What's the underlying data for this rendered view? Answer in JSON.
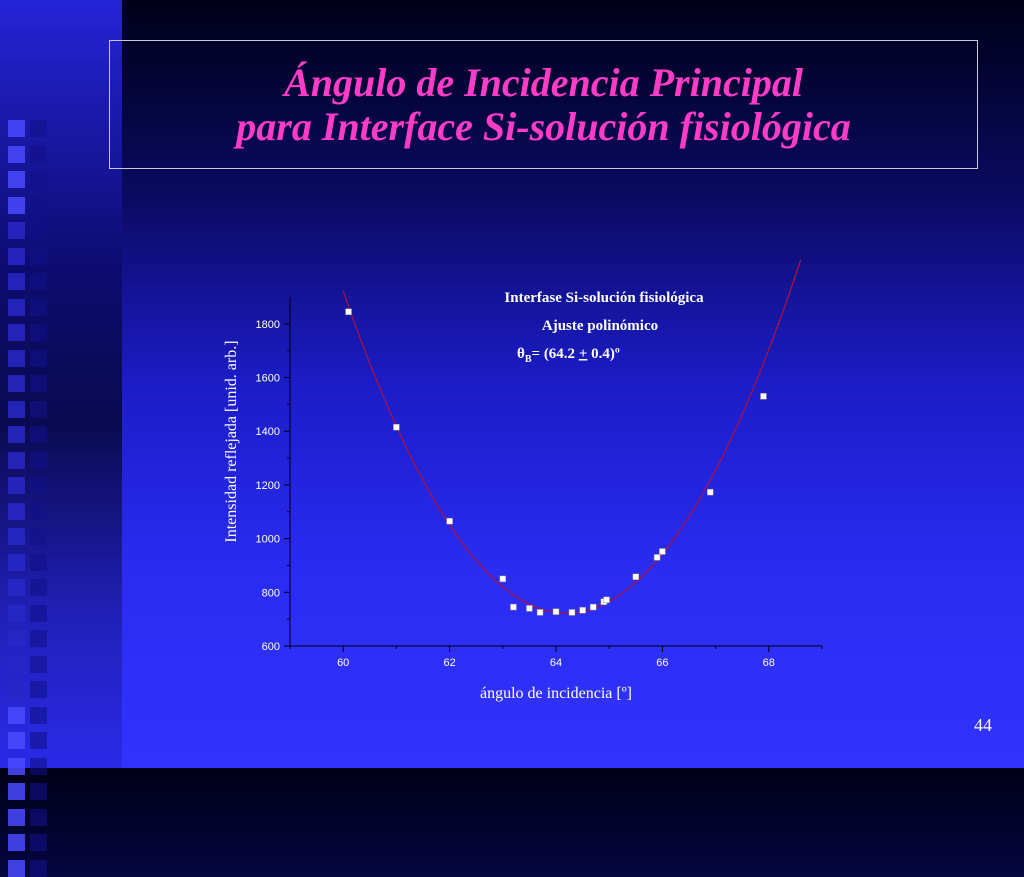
{
  "slide": {
    "title_line1": "Ángulo de Incidencia Principal",
    "title_line2": "para Interface Si-solución fisiológica",
    "page_number": "44",
    "title_color": "#ff3cc8"
  },
  "chart_data": {
    "type": "scatter",
    "annotation": {
      "line1": "Interfase Si-solución fisiológica",
      "line2": "Ajuste polinómico",
      "theta_symbol": "θ",
      "theta_sub": "B",
      "theta_eq": "= (64.2 ",
      "theta_pm": "+",
      "theta_end": " 0.4)º"
    },
    "xlabel": "ángulo de incidencia [º]",
    "ylabel": "Intensidad reflejada [unid. arb.]",
    "xlim": [
      59,
      69
    ],
    "ylim": [
      600,
      1900
    ],
    "xticks": [
      60,
      62,
      64,
      66,
      68
    ],
    "yticks": [
      600,
      800,
      1000,
      1200,
      1400,
      1600,
      1800
    ],
    "series": [
      {
        "points": [
          [
            60.1,
            1845
          ],
          [
            61.0,
            1415
          ],
          [
            62.0,
            1065
          ],
          [
            63.0,
            850
          ],
          [
            63.2,
            745
          ],
          [
            63.5,
            740
          ],
          [
            63.7,
            725
          ],
          [
            64.0,
            728
          ],
          [
            64.3,
            725
          ],
          [
            64.5,
            733
          ],
          [
            64.7,
            745
          ],
          [
            64.9,
            765
          ],
          [
            64.95,
            772
          ],
          [
            65.5,
            858
          ],
          [
            65.9,
            930
          ],
          [
            66.0,
            952
          ],
          [
            66.9,
            1173
          ],
          [
            67.9,
            1530
          ]
        ],
        "marker_color": "#ffffff"
      }
    ],
    "fit": {
      "type": "polynomial",
      "vertex_x": 64.2,
      "vertex_y": 722,
      "curvature": 68,
      "x_range": [
        60.0,
        68.6
      ],
      "color": "#b0103c"
    }
  }
}
